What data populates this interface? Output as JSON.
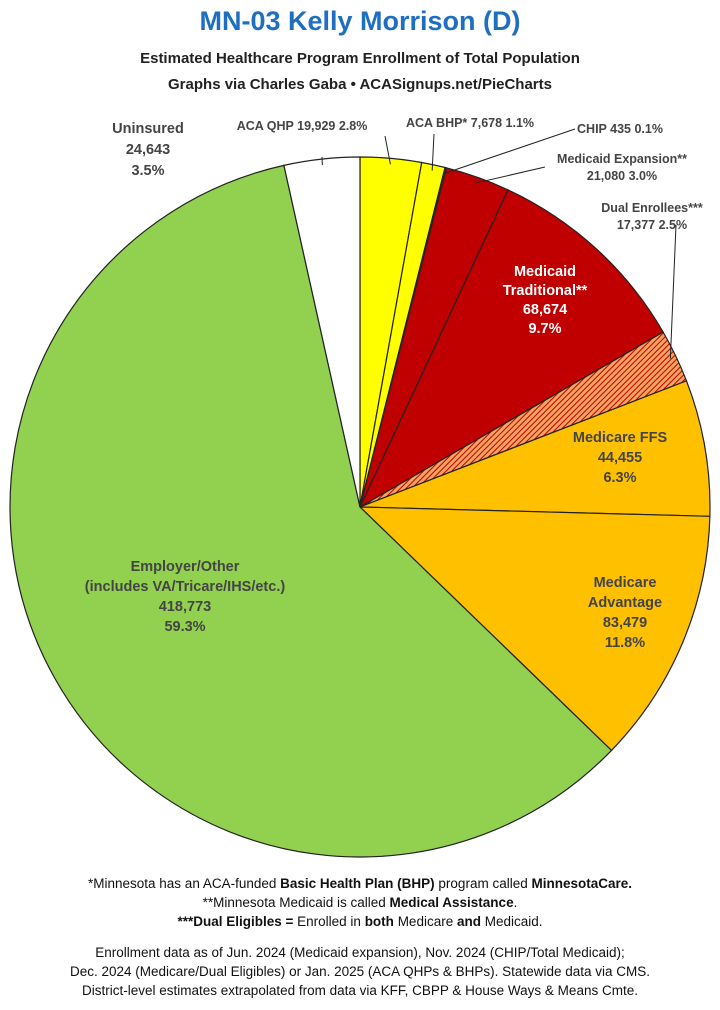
{
  "header": {
    "title": "MN-03 Kelly Morrison (D)",
    "subtitle": "Estimated Healthcare Program Enrollment of Total Population",
    "credit": "Graphs via Charles Gaba  •  ACASignups.net/PieCharts"
  },
  "chart_data": {
    "type": "pie",
    "start_angle_deg": 0,
    "direction": "clockwise",
    "slices": [
      {
        "name": "ACA QHP",
        "value": 19929,
        "percent": "2.8%",
        "color": "#ffff00",
        "label_lines": [
          "ACA QHP 19,929 2.8%"
        ],
        "label_style": "outside"
      },
      {
        "name": "ACA BHP*",
        "value": 7678,
        "percent": "1.1%",
        "color": "#ffff00",
        "label_lines": [
          "ACA BHP* 7,678 1.1%"
        ],
        "label_style": "outside"
      },
      {
        "name": "CHIP",
        "value": 435,
        "percent": "0.1%",
        "color": "#c00000",
        "label_lines": [
          "CHIP 435 0.1%"
        ],
        "label_style": "outside"
      },
      {
        "name": "Medicaid Expansion**",
        "value": 21080,
        "percent": "3.0%",
        "color": "#c00000",
        "label_lines": [
          "Medicaid Expansion**",
          "21,080 3.0%"
        ],
        "label_style": "outside"
      },
      {
        "name": "Medicaid Traditional**",
        "value": 68674,
        "percent": "9.7%",
        "color": "#c00000",
        "label_lines": [
          "Medicaid",
          "Traditional**",
          "68,674",
          "9.7%"
        ],
        "label_style": "inside-light"
      },
      {
        "name": "Dual Enrollees***",
        "value": 17377,
        "percent": "2.5%",
        "color": "#e87800",
        "pattern": "hatch",
        "label_lines": [
          "Dual Enrollees***",
          "17,377 2.5%"
        ],
        "label_style": "outside"
      },
      {
        "name": "Medicare FFS",
        "value": 44455,
        "percent": "6.3%",
        "color": "#ffc000",
        "label_lines": [
          "Medicare FFS",
          "44,455",
          "6.3%"
        ],
        "label_style": "inside-dark"
      },
      {
        "name": "Medicare Advantage",
        "value": 83479,
        "percent": "11.8%",
        "color": "#ffc000",
        "label_lines": [
          "Medicare",
          "Advantage",
          "83,479",
          "11.8%"
        ],
        "label_style": "inside-dark"
      },
      {
        "name": "Employer/Other (includes VA/Tricare/IHS/etc.)",
        "value": 418773,
        "percent": "59.3%",
        "color": "#92d050",
        "label_lines": [
          "Employer/Other",
          "(includes VA/Tricare/IHS/etc.)",
          "418,773",
          "59.3%"
        ],
        "label_style": "inside-dark"
      },
      {
        "name": "Uninsured",
        "value": 24643,
        "percent": "3.5%",
        "color": "#ffffff",
        "label_lines": [
          "Uninsured",
          "24,643",
          "3.5%"
        ],
        "label_style": "outside-block"
      }
    ]
  },
  "footnotes": {
    "bhp": {
      "pre": "*Minnesota has an ACA-funded ",
      "b1": "Basic Health Plan (BHP)",
      "mid": " program called ",
      "b2": "MinnesotaCare."
    },
    "medicaid": {
      "pre": "**Minnesota Medicaid is called ",
      "b1": "Medical Assistance",
      "post": "."
    },
    "dual": {
      "b1": "***Dual Eligibles =",
      "mid1": " Enrolled in ",
      "b2": "both",
      "mid2": " Medicare ",
      "b3": "and",
      "post": " Medicaid."
    }
  },
  "sources": {
    "line1": "Enrollment data as of Jun. 2024 (Medicaid expansion), Nov. 2024 (CHIP/Total Medicaid);",
    "line2": "Dec. 2024 (Medicare/Dual Eligibles) or Jan. 2025 (ACA QHPs & BHPs). Statewide data via CMS.",
    "line3": "District-level estimates extrapolated from data via KFF, CBPP & House Ways & Means Cmte."
  }
}
